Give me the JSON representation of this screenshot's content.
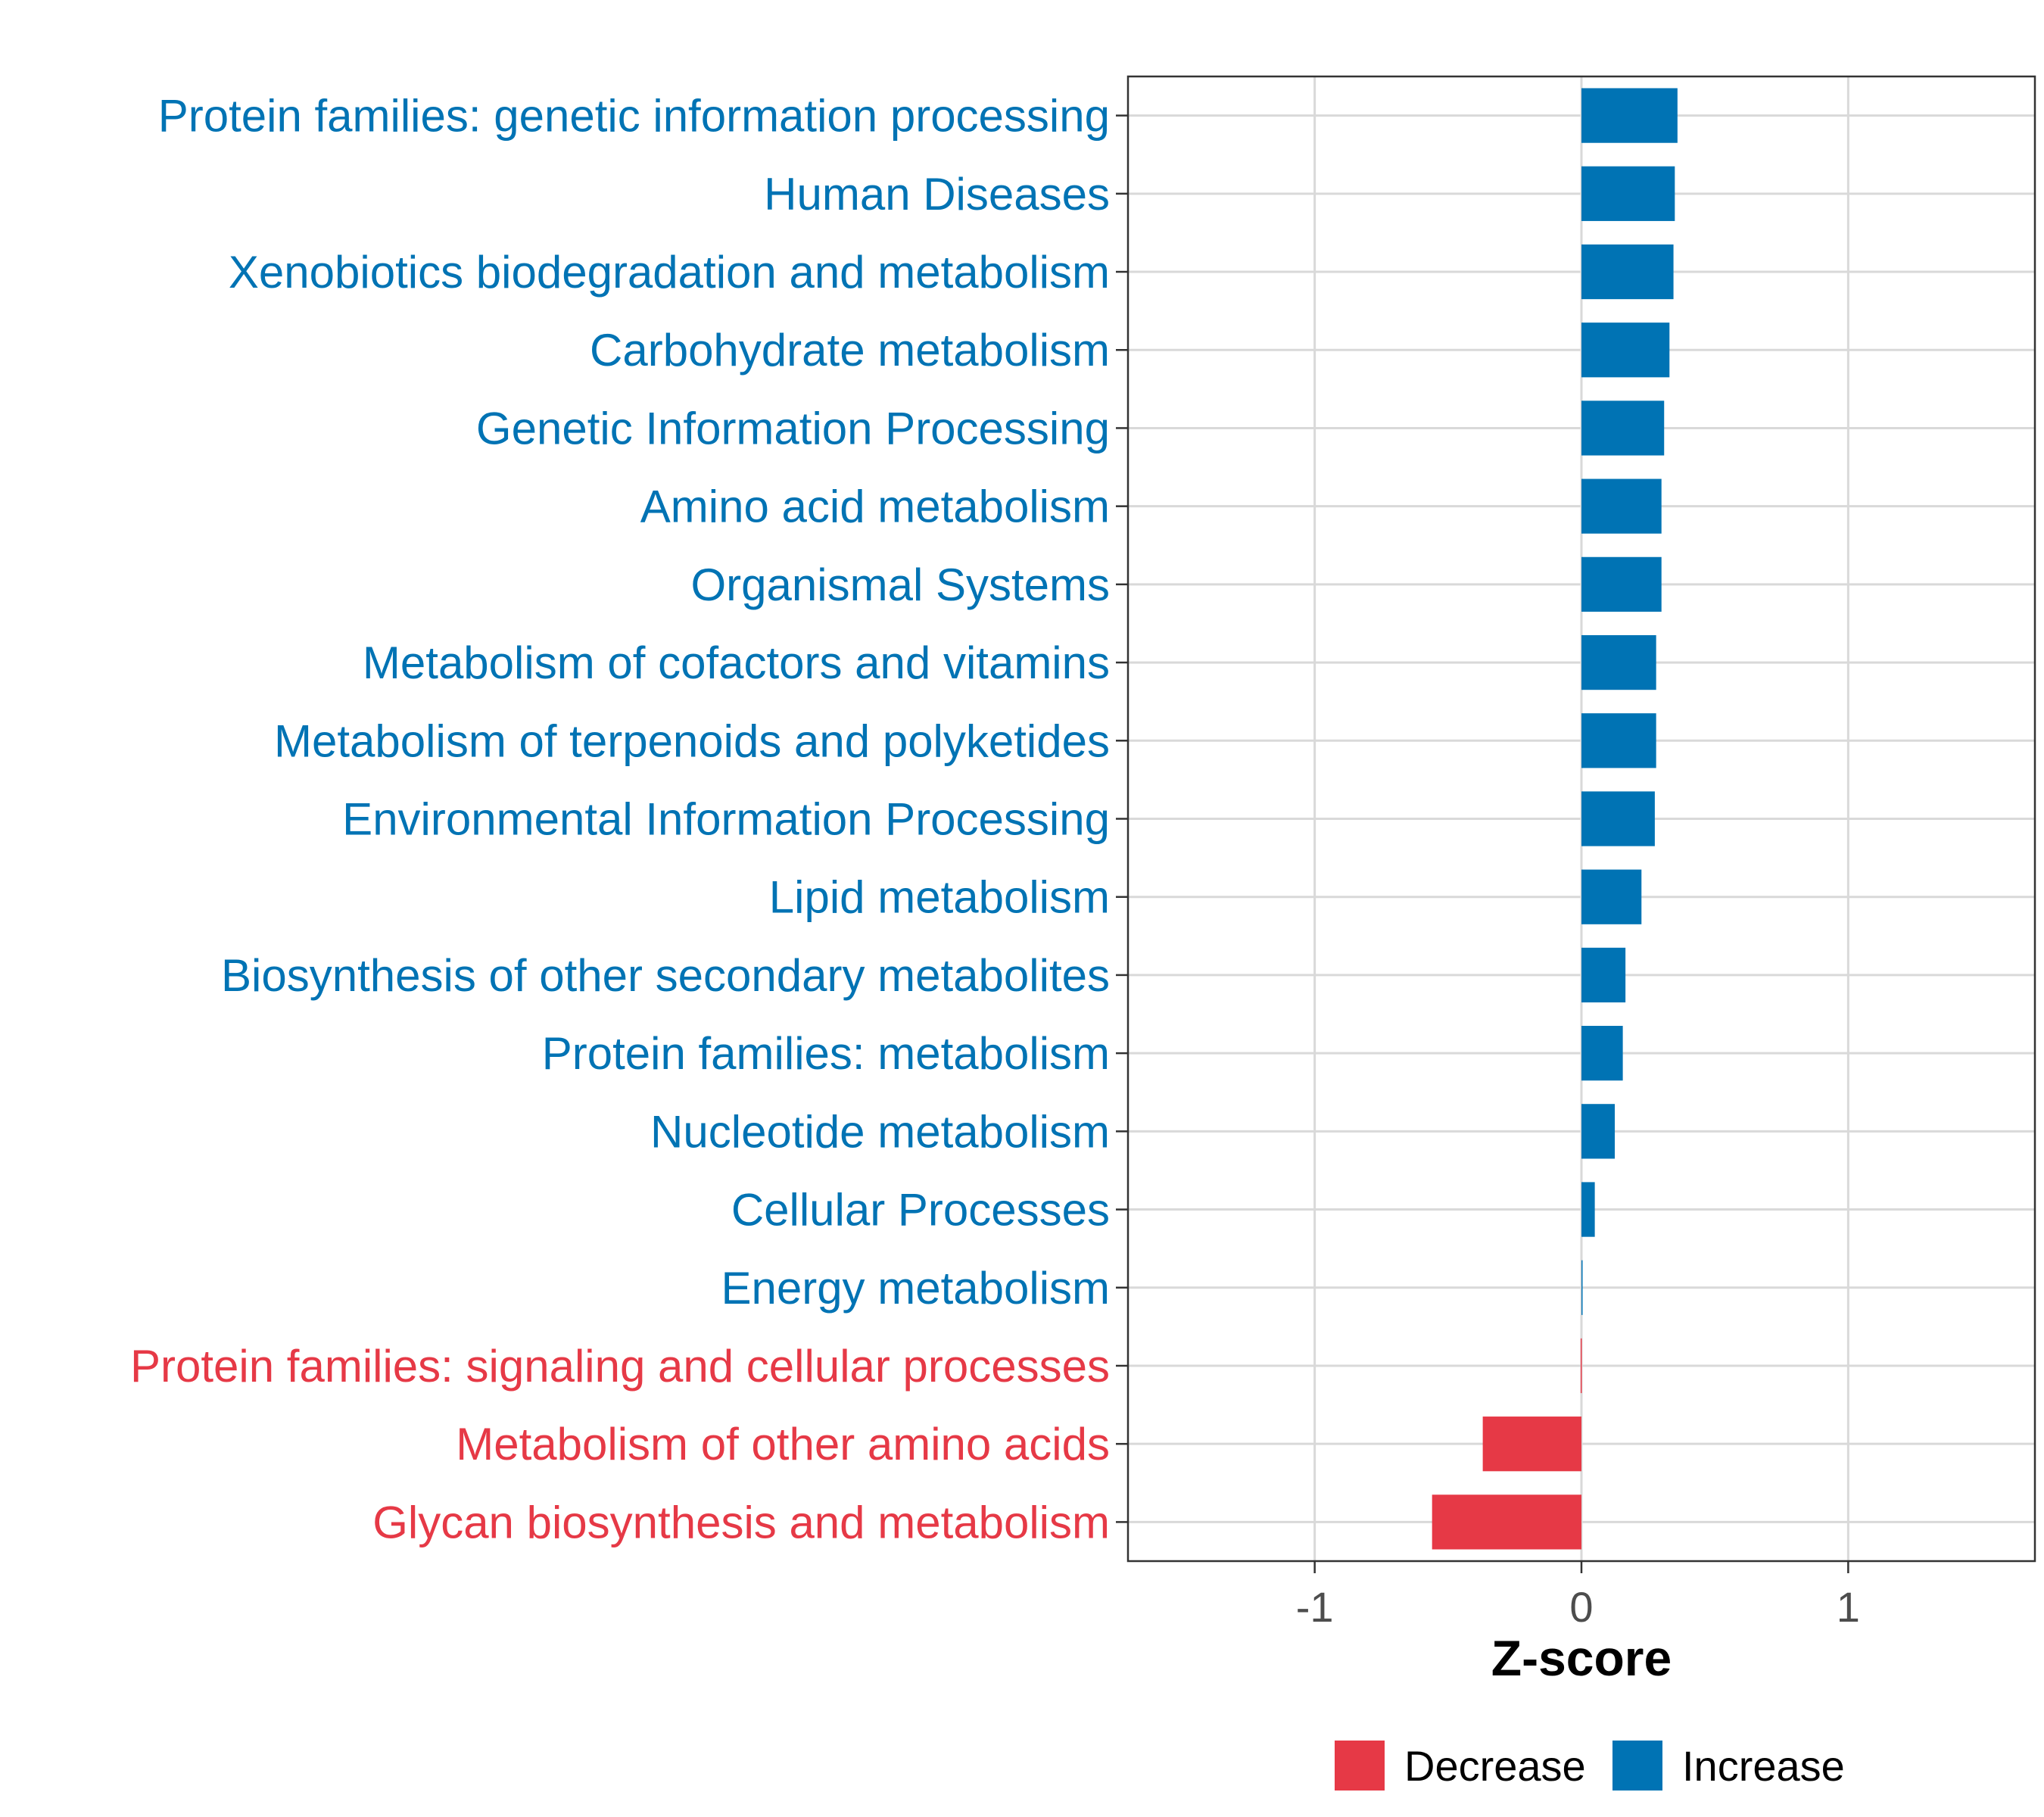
{
  "chart_data": {
    "type": "bar",
    "orientation": "horizontal",
    "xlabel": "Z-score",
    "xlim": [
      -1.7,
      1.7
    ],
    "xticks": [
      -1,
      0,
      1
    ],
    "xtick_labels": [
      "-1",
      "0",
      "1"
    ],
    "grid": true,
    "legend_position": "bottom",
    "categories": [
      "Protein families: genetic information processing",
      "Human Diseases",
      "Xenobiotics biodegradation and metabolism",
      "Carbohydrate metabolism",
      "Genetic Information Processing",
      "Amino acid metabolism",
      "Organismal Systems",
      "Metabolism of cofactors and vitamins",
      "Metabolism of terpenoids and polyketides",
      "Environmental Information Processing",
      "Lipid metabolism",
      "Biosynthesis of other secondary metabolites",
      "Protein families: metabolism",
      "Nucleotide metabolism",
      "Cellular Processes",
      "Energy metabolism",
      "Protein families: signaling and cellular processes",
      "Metabolism of other amino acids",
      "Glycan biosynthesis and metabolism"
    ],
    "values": [
      0.36,
      0.35,
      0.345,
      0.33,
      0.31,
      0.3,
      0.3,
      0.28,
      0.28,
      0.275,
      0.225,
      0.165,
      0.155,
      0.125,
      0.05,
      0.003,
      -0.003,
      -0.37,
      -0.56
    ],
    "groups": [
      "Increase",
      "Increase",
      "Increase",
      "Increase",
      "Increase",
      "Increase",
      "Increase",
      "Increase",
      "Increase",
      "Increase",
      "Increase",
      "Increase",
      "Increase",
      "Increase",
      "Increase",
      "Increase",
      "Decrease",
      "Decrease",
      "Decrease"
    ],
    "legend": [
      {
        "name": "Decrease",
        "color": "#E63946"
      },
      {
        "name": "Increase",
        "color": "#0073B4"
      }
    ]
  }
}
